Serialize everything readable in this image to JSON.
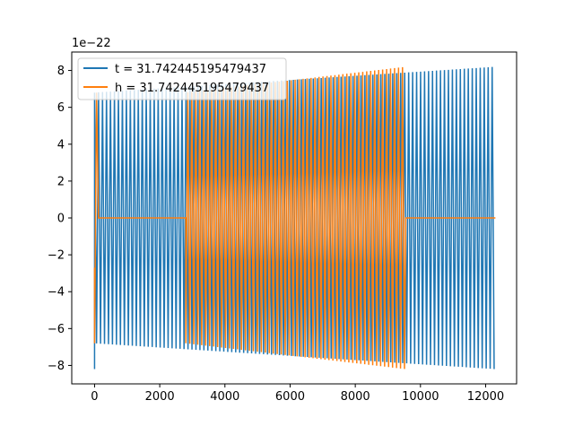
{
  "chart_data": {
    "type": "line",
    "title": "",
    "xlabel": "",
    "ylabel": "",
    "offset_label": "1e−22",
    "xlim": [
      -700,
      12950
    ],
    "ylim": [
      -9.0,
      9.0
    ],
    "x_ticks": [
      0,
      2000,
      4000,
      6000,
      8000,
      10000,
      12000
    ],
    "x_tick_labels": [
      "0",
      "2000",
      "4000",
      "6000",
      "8000",
      "10000",
      "12000"
    ],
    "y_ticks": [
      -8,
      -6,
      -4,
      -2,
      0,
      2,
      4,
      6,
      8
    ],
    "y_tick_labels": [
      "−8",
      "−6",
      "−4",
      "−2",
      "0",
      "2",
      "4",
      "6",
      "8"
    ],
    "grid": false,
    "legend_position": "top-left",
    "series": [
      {
        "name": "t = 31.742445195479437",
        "color": "#1f77b4",
        "description": "oscillating signal spanning x 0 to 12300",
        "x_range": [
          0,
          12300
        ],
        "amplitude_start": 6.8,
        "amplitude_end": 8.2,
        "min_value": -8.2,
        "max_value": 8.2
      },
      {
        "name": "h = 31.742445195479437",
        "color": "#ff7f0e",
        "segments": [
          {
            "kind": "oscillation",
            "x_range": [
              0,
              120
            ],
            "amplitude": 6.8
          },
          {
            "kind": "flat",
            "x_range": [
              120,
              2800
            ],
            "value": 0
          },
          {
            "kind": "oscillation",
            "x_range": [
              2800,
              9550
            ],
            "amplitude_start": 6.8,
            "amplitude_end": 8.2
          },
          {
            "kind": "flat",
            "x_range": [
              9550,
              12300
            ],
            "value": 0
          }
        ],
        "min_value": -8.2,
        "max_value": 8.2
      }
    ]
  }
}
